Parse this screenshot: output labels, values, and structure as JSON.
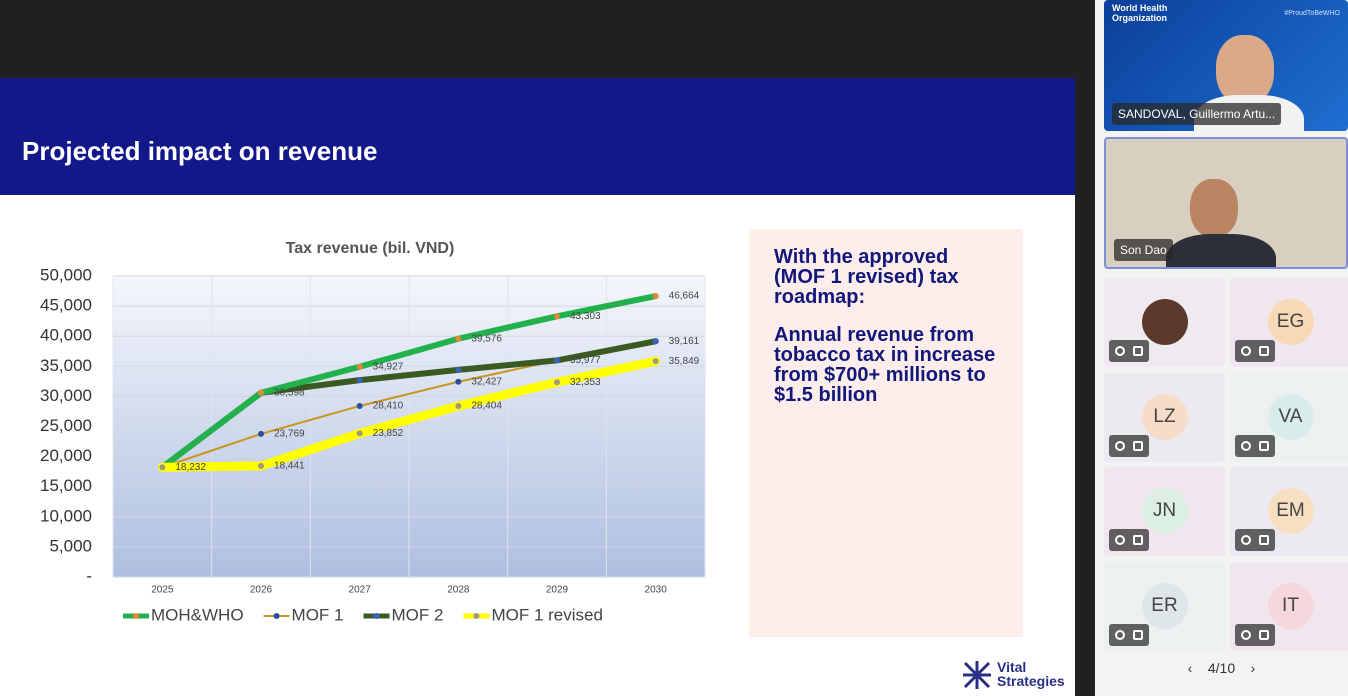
{
  "slide": {
    "title": "Projected impact on revenue",
    "panel": {
      "heading": "With the approved (MOF 1 revised) tax roadmap:",
      "body": "Annual revenue from tobacco tax in increase from $700+ millions to $1.5 billion"
    },
    "logo": "Vital Strategies"
  },
  "chart_data": {
    "type": "line",
    "title": "Tax revenue (bil. VND)",
    "categories": [
      "2025",
      "2026",
      "2027",
      "2028",
      "2029",
      "2030"
    ],
    "series": [
      {
        "name": "MOH&WHO",
        "color": "#22b14c",
        "marker_color": "#e8873a",
        "values": [
          18232,
          30598,
          34927,
          39576,
          43303,
          46664
        ],
        "value_labels": [
          null,
          "30,598",
          "34,927",
          "39,576",
          "43,303",
          "46,664"
        ]
      },
      {
        "name": "MOF 1",
        "color": "#c8961e",
        "marker_color": "#2a4d9c",
        "values": [
          18232,
          23769,
          28410,
          32427,
          35977,
          39161
        ],
        "value_labels": [
          null,
          "23,769",
          "28,410",
          "32,427",
          null,
          null
        ]
      },
      {
        "name": "MOF 2",
        "color": "#3b5a22",
        "marker_color": "#3a63b8",
        "values": [
          18232,
          30598,
          32700,
          34400,
          35977,
          39161
        ],
        "value_labels": [
          null,
          null,
          null,
          null,
          "35,977",
          "39,161"
        ]
      },
      {
        "name": "MOF 1 revised",
        "color": "#ffff00",
        "marker_color": "#a09a7a",
        "values": [
          18232,
          18441,
          23852,
          28404,
          32353,
          35849
        ],
        "value_labels": [
          "18,232",
          "18,441",
          "23,852",
          "28,404",
          "32,353",
          "35,849"
        ]
      }
    ],
    "ylim": [
      0,
      50000
    ],
    "yticks": [
      {
        "value": 0,
        "label": "-"
      },
      {
        "value": 5000,
        "label": "5,000"
      },
      {
        "value": 10000,
        "label": "10,000"
      },
      {
        "value": 15000,
        "label": "15,000"
      },
      {
        "value": 20000,
        "label": "20,000"
      },
      {
        "value": 25000,
        "label": "25,000"
      },
      {
        "value": 30000,
        "label": "30,000"
      },
      {
        "value": 35000,
        "label": "35,000"
      },
      {
        "value": 40000,
        "label": "40,000"
      },
      {
        "value": 45000,
        "label": "45,000"
      },
      {
        "value": 50000,
        "label": "50,000"
      }
    ],
    "grid": true,
    "legend": "bottom"
  },
  "meeting": {
    "watermark": {
      "org": "World Health Organization",
      "tag": "#ProudToBeWHO"
    },
    "featured": [
      {
        "name": "SANDOVAL, Guillermo Artu..."
      },
      {
        "name": "Son Dao"
      }
    ],
    "tiles": [
      "EG",
      "LZ",
      "VA",
      "JN",
      "EM",
      "ER",
      "IT"
    ],
    "pagination": "4/10"
  }
}
